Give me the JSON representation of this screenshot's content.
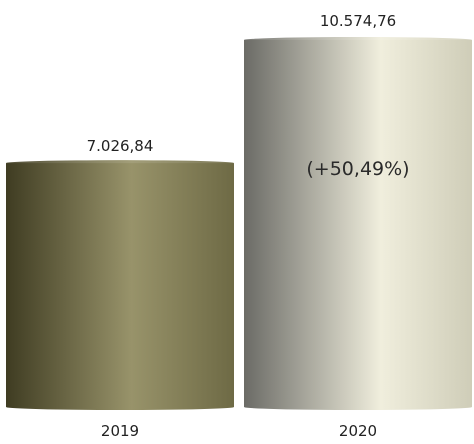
{
  "chart_data": {
    "type": "bar",
    "style": "3d-cylinder",
    "categories": [
      "2019",
      "2020"
    ],
    "values": [
      7026.84,
      10574.76
    ],
    "value_labels": [
      "7.026,84",
      "10.574,76"
    ],
    "annotation": "(+50,49%)",
    "title": "",
    "xlabel": "",
    "ylabel": "",
    "ylim": [
      0,
      11000
    ],
    "grid": false,
    "legend": "none",
    "colors": {
      "bar_2019": [
        "#3f3c22",
        "#98936a",
        "#6e6a45"
      ],
      "bar_2020": [
        "#6b6b66",
        "#f0eedd",
        "#cfcdb8"
      ]
    }
  }
}
